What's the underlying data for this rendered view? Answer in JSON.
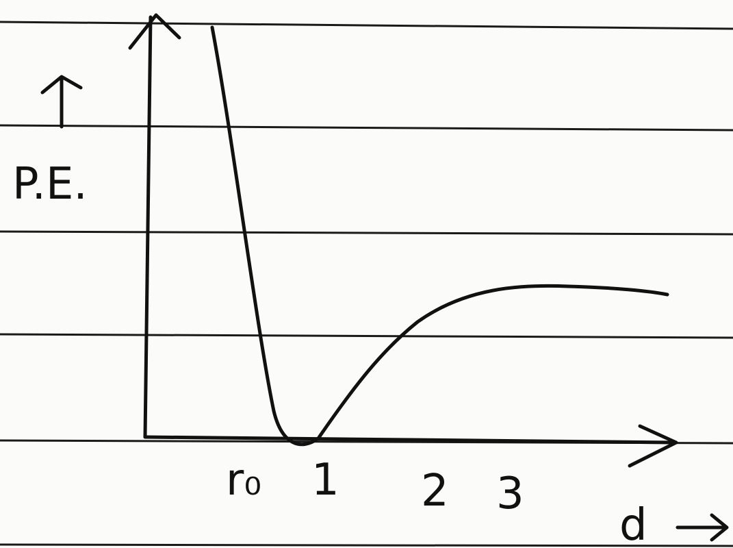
{
  "y_axis": {
    "label": "P.E."
  },
  "x_axis": {
    "label": "d",
    "tick_labels": [
      "r₀",
      "1",
      "2",
      "3"
    ]
  }
}
